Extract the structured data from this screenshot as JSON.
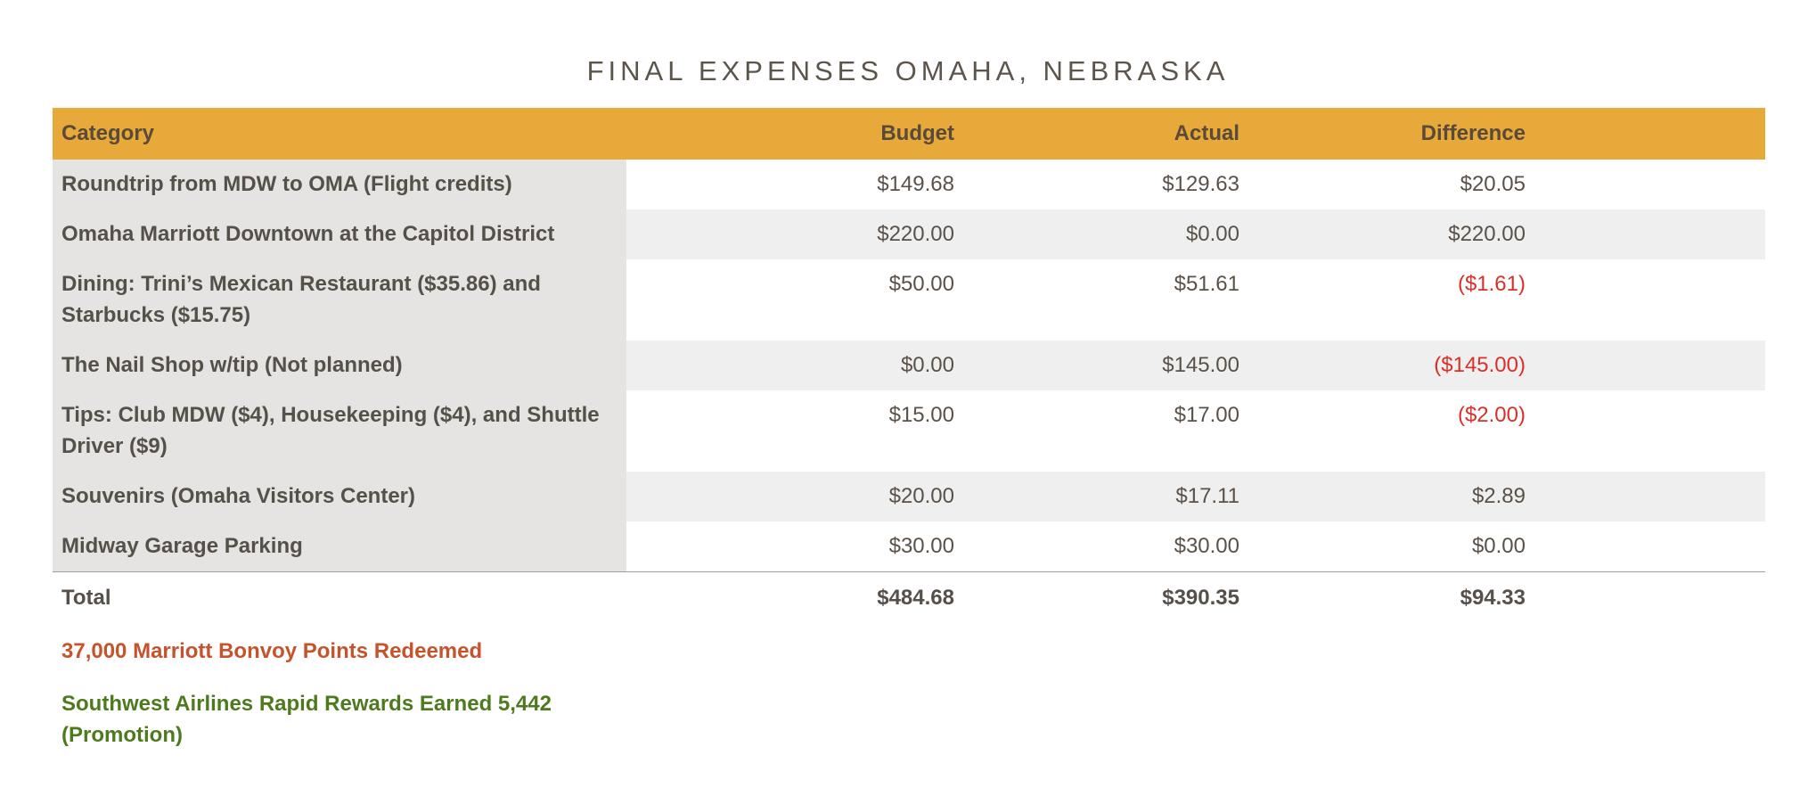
{
  "title": "FINAL EXPENSES OMAHA, NEBRASKA",
  "columns": {
    "category": "Category",
    "budget": "Budget",
    "actual": "Actual",
    "difference": "Difference"
  },
  "rows": [
    {
      "category": "Roundtrip from MDW to OMA (Flight credits)",
      "budget": "$149.68",
      "actual": "$129.63",
      "difference": "$20.05"
    },
    {
      "category": "Omaha Marriott Downtown at the Capitol District",
      "budget": "$220.00",
      "actual": "$0.00",
      "difference": "$220.00"
    },
    {
      "category": "Dining: Trini’s Mexican Restaurant ($35.86) and Starbucks ($15.75)",
      "budget": "$50.00",
      "actual": "$51.61",
      "difference": "($1.61)"
    },
    {
      "category": "The Nail Shop w/tip (Not planned)",
      "budget": "$0.00",
      "actual": "$145.00",
      "difference": "($145.00)"
    },
    {
      "category": "Tips: Club MDW ($4), Housekeeping ($4), and Shuttle Driver ($9)",
      "budget": "$15.00",
      "actual": "$17.00",
      "difference": "($2.00)"
    },
    {
      "category": "Souvenirs (Omaha Visitors Center)",
      "budget": "$20.00",
      "actual": "$17.11",
      "difference": "$2.89"
    },
    {
      "category": "Midway Garage Parking",
      "budget": "$30.00",
      "actual": "$30.00",
      "difference": "$0.00"
    }
  ],
  "total": {
    "label": "Total",
    "budget": "$484.68",
    "actual": "$390.35",
    "difference": "$94.33"
  },
  "notes": {
    "points": "37,000 Marriott Bonvoy Points Redeemed",
    "rewards": "Southwest Airlines Rapid Rewards Earned 5,442 (Promotion)"
  },
  "colors": {
    "header": "#e6a93a",
    "negative": "#d9302a",
    "points_note": "#c5532b",
    "rewards_note": "#4e7a1e"
  }
}
